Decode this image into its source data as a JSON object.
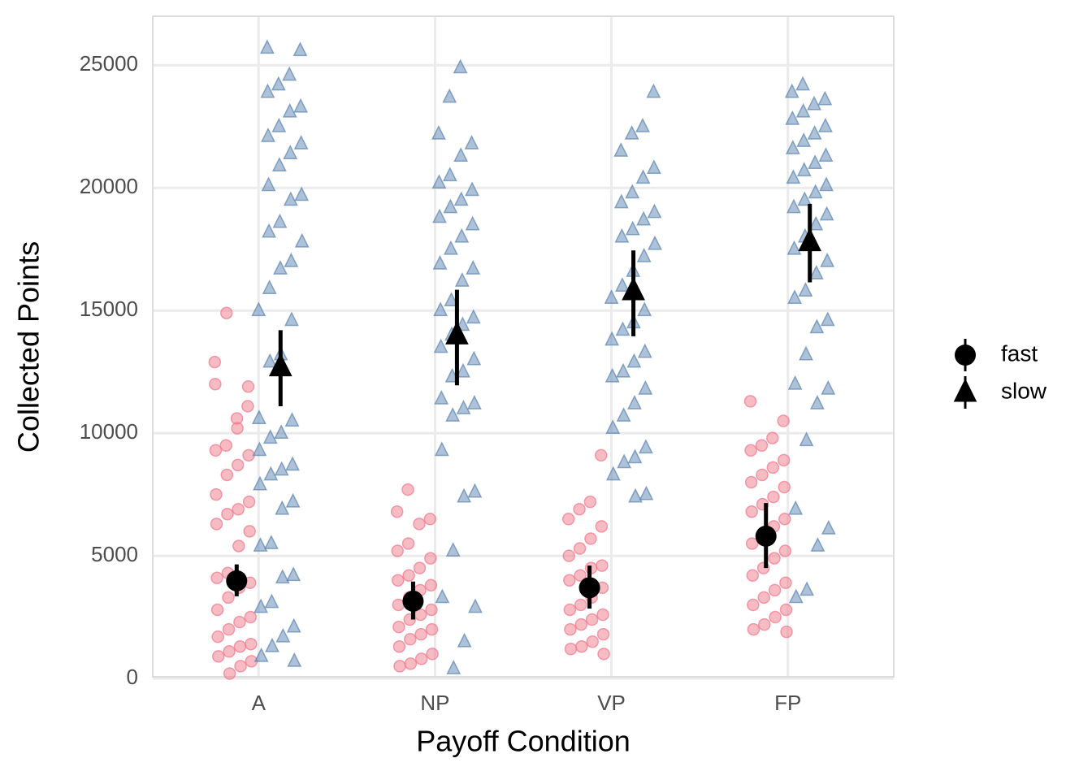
{
  "chart_data": {
    "type": "jitter-summary",
    "x_label": "Payoff Condition",
    "y_label": "Collected Points",
    "categories": [
      "A",
      "NP",
      "VP",
      "FP"
    ],
    "ylim": [
      0,
      27000
    ],
    "yticks": [
      0,
      5000,
      10000,
      15000,
      20000,
      25000
    ],
    "grid": true,
    "legend": "right",
    "series": [
      {
        "name": "fast",
        "color": "#f0788a",
        "marker": "circle",
        "means": [
          3980,
          3150,
          3700,
          5800
        ],
        "lower": [
          3350,
          2400,
          2850,
          4500
        ],
        "upper": [
          4650,
          3950,
          4600,
          7150
        ],
        "points": [
          [
            12900,
            11100,
            10600,
            9500,
            12000,
            11900,
            10200,
            14900,
            9300,
            9100,
            8700,
            8300,
            7500,
            7200,
            6900,
            6700,
            6300,
            6000,
            5400,
            4300,
            4100,
            3900,
            3700,
            3300,
            2800,
            2500,
            2300,
            2000,
            1700,
            1400,
            1300,
            1100,
            900,
            700,
            500,
            200
          ],
          [
            7700,
            6800,
            6500,
            6300,
            5500,
            5200,
            4900,
            4500,
            4200,
            4000,
            3800,
            3600,
            3300,
            3000,
            2800,
            2600,
            2400,
            2100,
            2000,
            1800,
            1600,
            1300,
            1000,
            800,
            600,
            500
          ],
          [
            9100,
            7200,
            6900,
            6500,
            6200,
            5700,
            5300,
            5000,
            4600,
            4500,
            4200,
            4000,
            3700,
            3300,
            3000,
            2800,
            2600,
            2400,
            2200,
            2000,
            1800,
            1500,
            1300,
            1200,
            1000
          ],
          [
            11300,
            10500,
            9800,
            9500,
            9300,
            8900,
            8600,
            8300,
            8000,
            7800,
            7400,
            7100,
            6800,
            6500,
            6200,
            5800,
            5500,
            5200,
            4900,
            4500,
            4200,
            3900,
            3600,
            3300,
            3000,
            2800,
            2500,
            2200,
            2000,
            1900
          ]
        ]
      },
      {
        "name": "slow",
        "color": "#5b84b1",
        "marker": "triangle",
        "means": [
          12700,
          14000,
          15800,
          17800
        ],
        "lower": [
          11100,
          11950,
          13950,
          16150
        ],
        "upper": [
          14200,
          15850,
          17450,
          19350
        ],
        "points": [
          [
            25700,
            25600,
            24600,
            24200,
            23900,
            23300,
            23100,
            22500,
            22100,
            21800,
            21400,
            20900,
            20100,
            19700,
            19500,
            18600,
            18200,
            17800,
            17000,
            16700,
            15900,
            15000,
            14600,
            13200,
            12900,
            10600,
            10500,
            10000,
            9800,
            9300,
            8700,
            8500,
            8300,
            7900,
            7200,
            6900,
            5500,
            5400,
            4200,
            4100,
            3100,
            2900,
            2100,
            1700,
            1300,
            900,
            700
          ],
          [
            24900,
            23700,
            22200,
            21800,
            21300,
            20500,
            20200,
            19900,
            19500,
            19200,
            18800,
            18500,
            18000,
            17500,
            16900,
            16700,
            16200,
            15400,
            15000,
            14700,
            14400,
            14000,
            13500,
            13000,
            12500,
            12300,
            11400,
            11200,
            11000,
            10700,
            9300,
            7600,
            7400,
            5200,
            3300,
            2900,
            1500,
            400
          ],
          [
            23900,
            22500,
            22200,
            21500,
            20800,
            20400,
            19800,
            19400,
            19000,
            18700,
            18300,
            18000,
            17700,
            17200,
            16600,
            16000,
            15500,
            15000,
            14500,
            14200,
            13800,
            13300,
            12900,
            12500,
            12300,
            11800,
            11200,
            10700,
            10200,
            9400,
            9000,
            8800,
            8300,
            7500,
            7400
          ],
          [
            24200,
            23900,
            23600,
            23400,
            23100,
            22800,
            22500,
            22200,
            21900,
            21600,
            21300,
            21000,
            20700,
            20400,
            20100,
            19800,
            19500,
            19200,
            18900,
            18500,
            18000,
            17500,
            17000,
            16500,
            15800,
            15500,
            14600,
            14300,
            13200,
            12000,
            11800,
            11200,
            9700,
            6900,
            6100,
            5400,
            3600,
            3300
          ]
        ]
      }
    ]
  }
}
